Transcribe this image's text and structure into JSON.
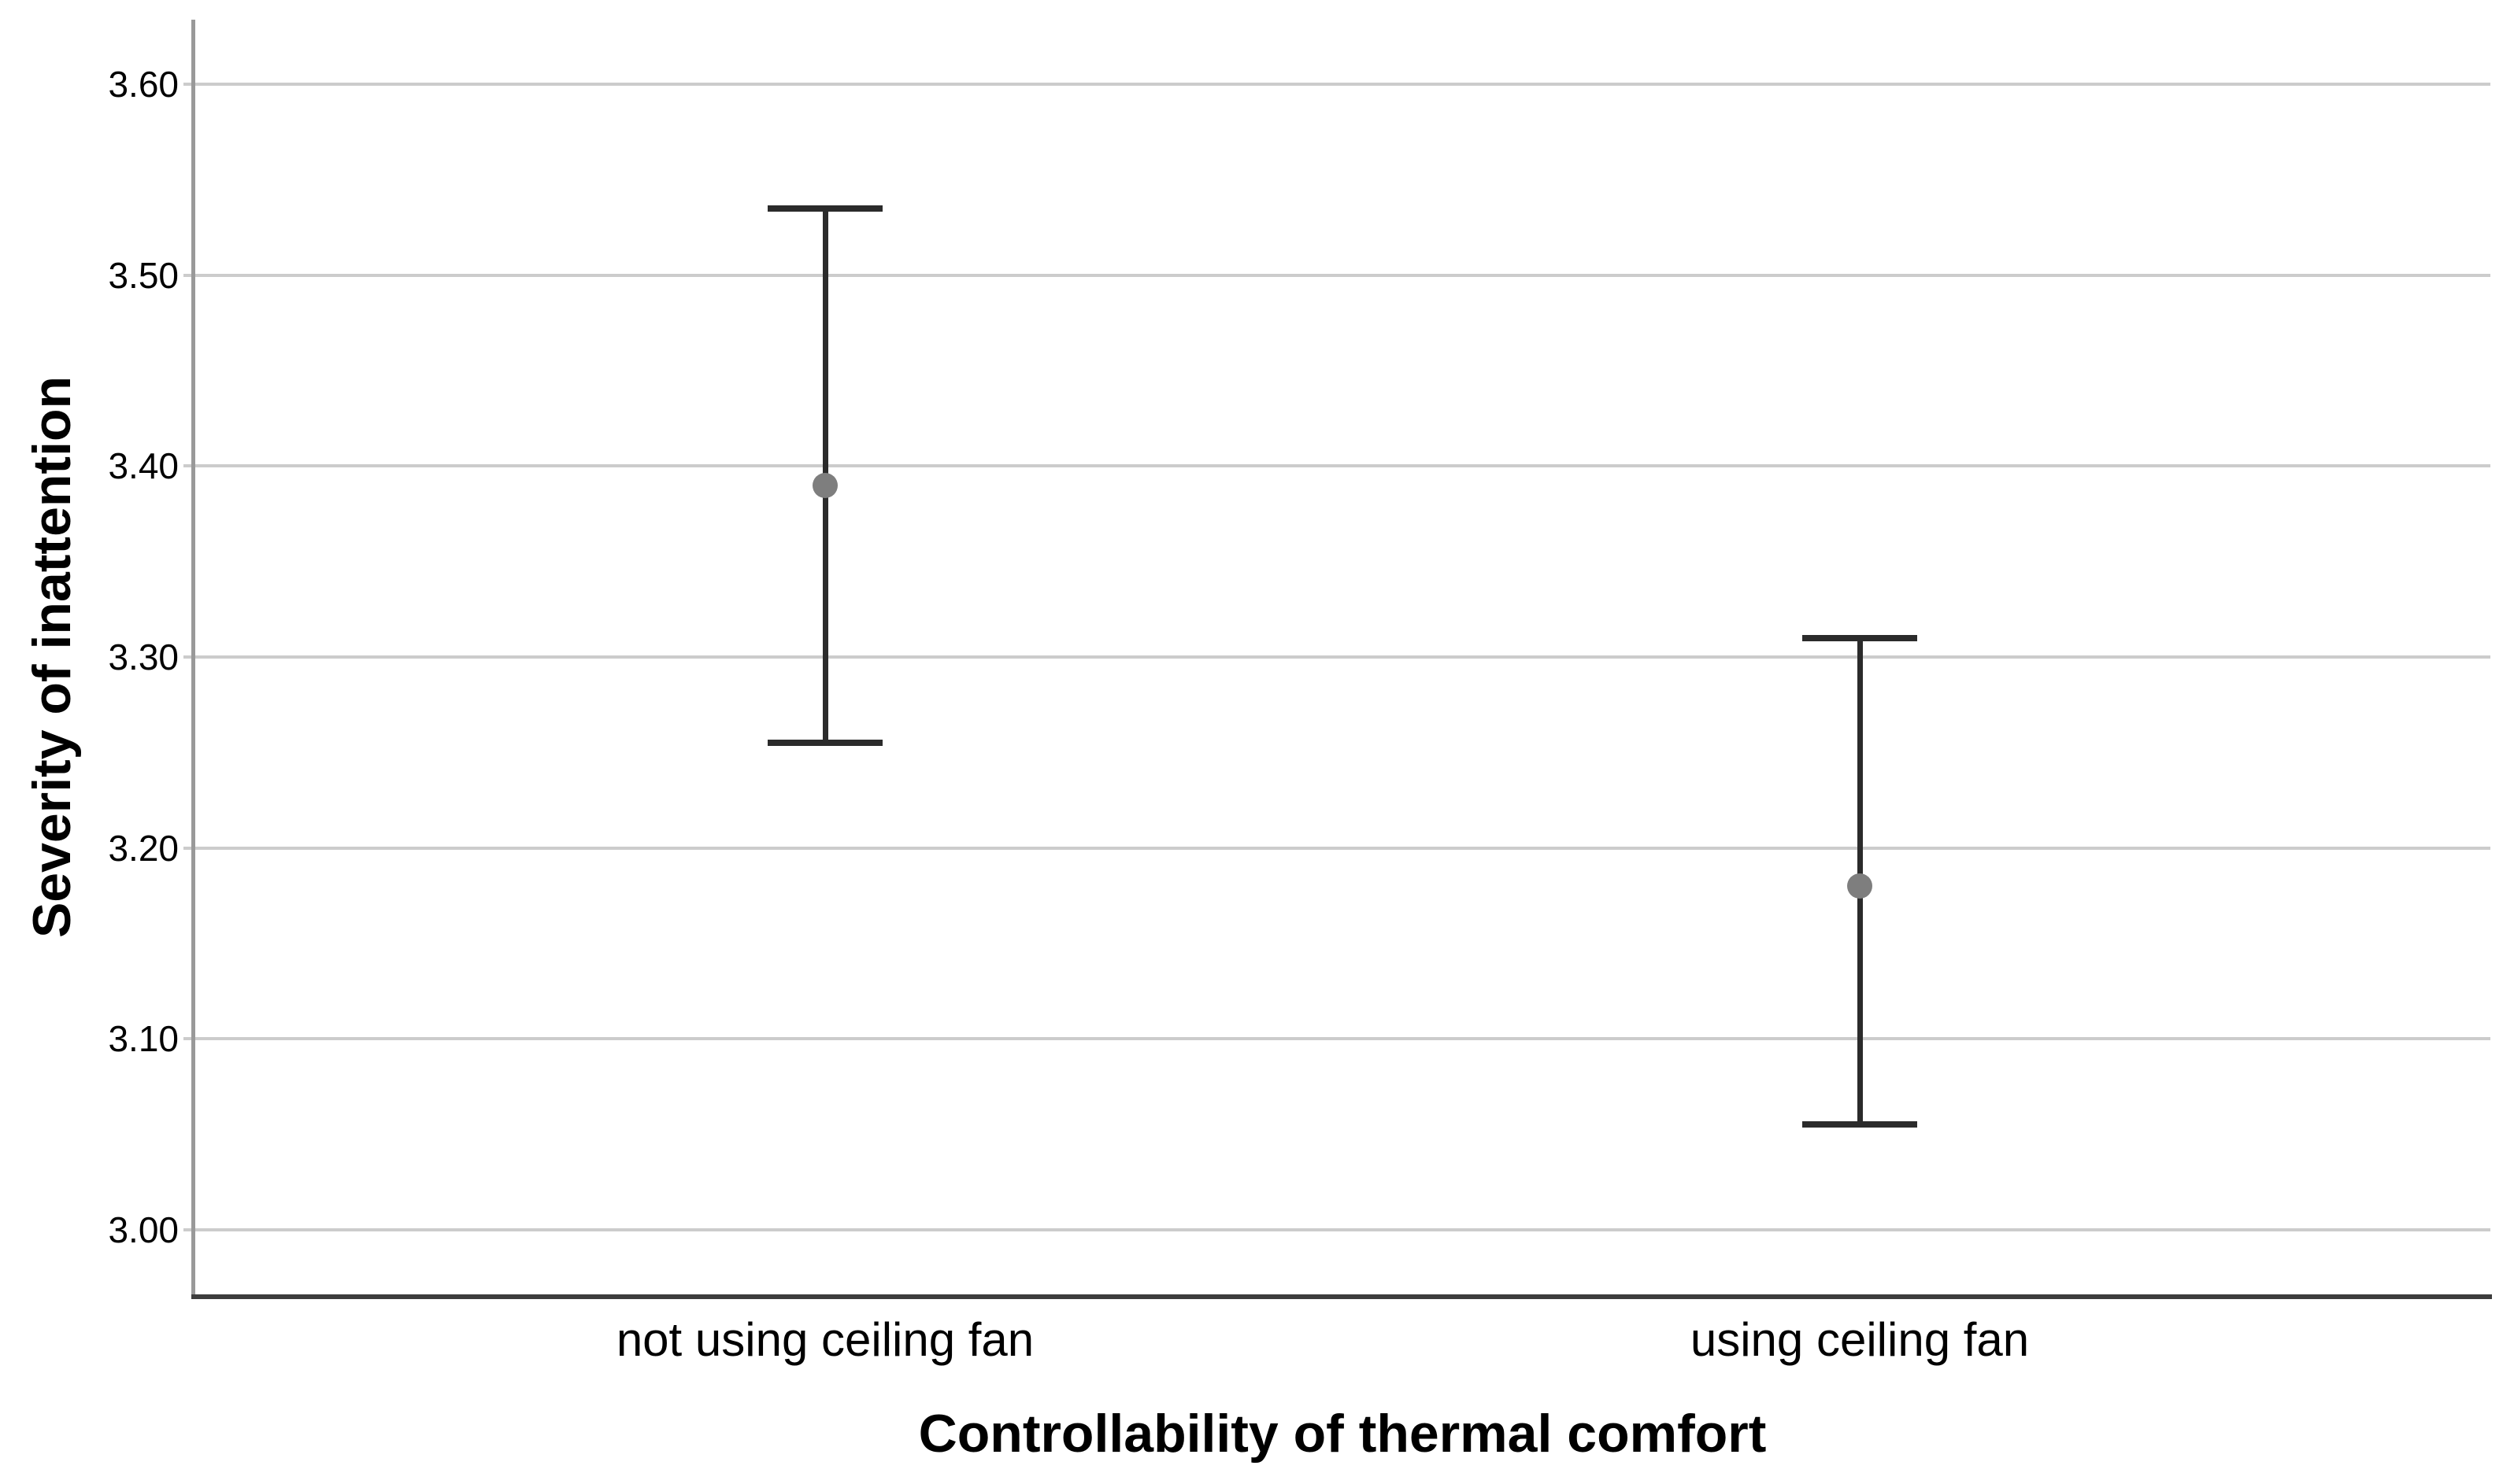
{
  "chart_data": {
    "type": "errorbar",
    "title": "",
    "xlabel": "Controllability of thermal comfort",
    "ylabel": "Severity of inattention",
    "categories": [
      "not using ceiling fan",
      "using ceiling fan"
    ],
    "series": [
      {
        "means": [
          3.39,
          3.18
        ],
        "ci_upper": [
          3.535,
          3.31
        ],
        "ci_lower": [
          3.255,
          3.055
        ]
      }
    ],
    "y_ticks": [
      "3.00",
      "3.10",
      "3.20",
      "3.30",
      "3.40",
      "3.50",
      "3.60"
    ],
    "ylim": [
      2.966,
      3.634
    ],
    "grid": "horizontal",
    "legend": "none",
    "marker": "circle"
  },
  "colors": {
    "background": "#ffffff",
    "gridline": "#cccccc",
    "y_axis_line": "#999999",
    "x_axis_line": "#3d3d3d",
    "error_bar": "#2b2b2b",
    "mean_dot": "#7e7e7e",
    "text": "#000000"
  }
}
